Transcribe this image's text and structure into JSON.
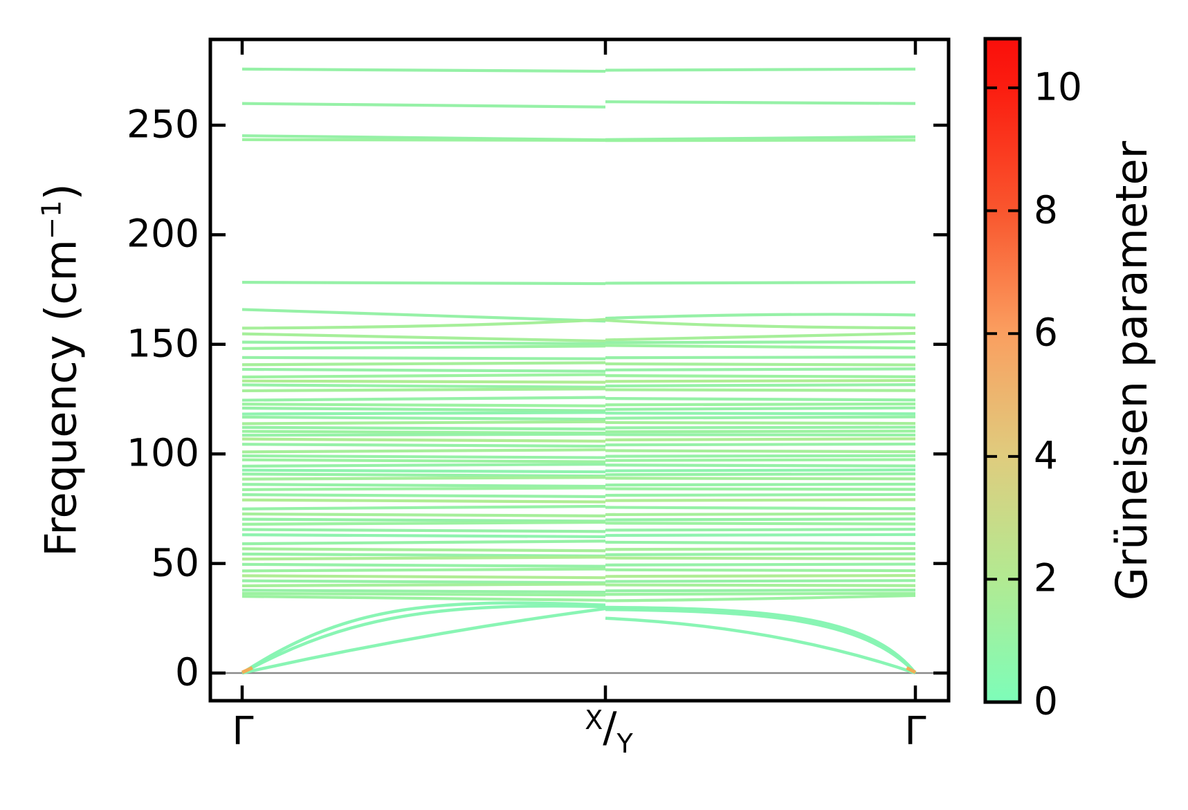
{
  "chart_data": {
    "type": "line",
    "title": "",
    "description": "Phonon band structure colored by Grüneisen parameter along Γ–X/Y–Γ",
    "ylabel": {
      "text": "Frequency (cm",
      "sup": "−1",
      "close": ")"
    },
    "xticks": {
      "left": "Γ",
      "mid": {
        "sup": "X",
        "slash": "/",
        "sub": "Y"
      },
      "right": "Γ"
    },
    "yticks": [
      0,
      50,
      100,
      150,
      200,
      250
    ],
    "ylim": [
      -12.5,
      289
    ],
    "x_path": [
      "Γ",
      "X|Y",
      "Γ"
    ],
    "zero_line_color": "#8a8a8a",
    "colorbar": {
      "label": "Grüneisen parameter",
      "ticks": [
        0,
        2,
        4,
        6,
        8,
        10
      ],
      "vmin": 0,
      "vmax": 10.8,
      "stops": [
        {
          "v": 10.8,
          "color": "#fa0f0b"
        },
        {
          "v": 10.0,
          "color": "#fb1d10"
        },
        {
          "v": 8.0,
          "color": "#f9562e"
        },
        {
          "v": 6.0,
          "color": "#fa9f60"
        },
        {
          "v": 4.0,
          "color": "#dfcc7e"
        },
        {
          "v": 2.0,
          "color": "#b2ea92"
        },
        {
          "v": 0.0,
          "color": "#7dfdb9"
        }
      ]
    },
    "palette": [
      "#98f19d",
      "#92f0a3",
      "#a2ee96",
      "#adec90",
      "#8af3ac",
      "#84f5b1",
      "#f5a952"
    ],
    "bands": [
      {
        "l": [
          275.6,
          274.6
        ],
        "r": [
          275.1,
          275.6
        ],
        "c": 1
      },
      {
        "l": [
          259.9,
          258.3
        ],
        "r": [
          260.7,
          259.9
        ],
        "c": 1
      },
      {
        "l": [
          245.2,
          243.3
        ],
        "r": [
          243.4,
          244.7
        ],
        "c": 1
      },
      {
        "l": [
          243.4,
          243.1
        ],
        "r": [
          243.0,
          243.2
        ],
        "c": 0
      },
      {
        "l": [
          178.3,
          177.7
        ],
        "r": [
          177.9,
          178.3
        ],
        "c": 1
      },
      {
        "l": [
          165.9,
          160.6
        ],
        "ql": [
          0.5,
          163.0
        ],
        "r": [
          161.9,
          163.4
        ],
        "qr": [
          0.55,
          164.4
        ],
        "c": 1
      },
      {
        "l": [
          157.4,
          161.4
        ],
        "ql": [
          0.65,
          157.9
        ],
        "r": [
          161.0,
          157.5
        ],
        "qr": [
          0.35,
          157.8
        ],
        "c": 2
      },
      {
        "l": [
          35.0,
          33.2
        ],
        "ql": [
          0.6,
          33.6
        ],
        "r": [
          33.0,
          35.4
        ],
        "qr": [
          0.4,
          33.4
        ],
        "c": 0
      },
      {
        "l": [
          0,
          31.0
        ],
        "cl": [
          [
            0.28,
            30.0
          ],
          [
            0.5,
            34.5
          ]
        ],
        "r": [
          30.0,
          0
        ],
        "cr": [
          [
            0.5,
            29.5
          ],
          [
            0.85,
            27.0
          ]
        ],
        "c": 5,
        "w": 4.5
      },
      {
        "l": [
          0,
          30.3
        ],
        "cl": [
          [
            0.3,
            27.0
          ],
          [
            0.55,
            32.0
          ]
        ],
        "r": [
          29.0,
          0
        ],
        "cr": [
          [
            0.5,
            28.2
          ],
          [
            0.83,
            25.5
          ]
        ],
        "c": 5,
        "w": 4.5
      },
      {
        "l": [
          0,
          29.4
        ],
        "ql": [
          0.5,
          18.5
        ],
        "r": [
          25.0,
          0
        ],
        "qr": [
          0.55,
          21.5
        ],
        "c": 5,
        "w": 4.5
      },
      {
        "l": [
          0.3,
          2.4
        ],
        "sl": [
          0,
          0.028
        ],
        "c": 6,
        "w": 5
      },
      {
        "r": [
          2.4,
          0.3
        ],
        "sr": [
          0.972,
          1
        ],
        "c": 6,
        "w": 5
      }
    ],
    "dense_bands": [
      [
        154.8,
        151.5,
        152.0,
        155.0,
        2
      ],
      [
        151.0,
        150.3,
        150.8,
        151.2,
        1
      ],
      [
        148.1,
        149.2,
        149.5,
        148.3,
        0
      ],
      [
        144.0,
        143.4,
        143.9,
        144.2,
        1
      ],
      [
        140.7,
        141.6,
        141.1,
        140.6,
        2
      ],
      [
        138.6,
        137.7,
        138.3,
        138.8,
        1
      ],
      [
        135.1,
        136.2,
        135.7,
        135.2,
        0
      ],
      [
        133.3,
        132.7,
        133.1,
        133.5,
        3
      ],
      [
        131.5,
        130.4,
        131.0,
        131.6,
        1
      ],
      [
        128.8,
        129.7,
        129.3,
        128.9,
        2
      ],
      [
        124.5,
        125.8,
        125.3,
        124.6,
        1
      ],
      [
        122.7,
        121.9,
        122.4,
        122.8,
        0
      ],
      [
        120.9,
        119.7,
        120.3,
        121.0,
        1
      ],
      [
        118.2,
        118.9,
        118.6,
        118.3,
        4
      ],
      [
        116.8,
        115.8,
        116.3,
        116.9,
        1
      ],
      [
        113.8,
        114.7,
        114.3,
        113.9,
        2
      ],
      [
        112.1,
        111.3,
        111.9,
        112.2,
        1
      ],
      [
        110.3,
        109.5,
        110.1,
        110.4,
        0
      ],
      [
        108.5,
        109.0,
        108.8,
        108.6,
        1
      ],
      [
        106.8,
        105.8,
        106.4,
        106.9,
        3
      ],
      [
        104.4,
        103.5,
        104.1,
        104.5,
        1
      ],
      [
        100.9,
        101.9,
        101.5,
        101.0,
        2
      ],
      [
        99.1,
        98.3,
        98.9,
        99.2,
        1
      ],
      [
        97.3,
        96.4,
        97.0,
        97.4,
        0
      ],
      [
        94.4,
        95.3,
        94.9,
        94.5,
        1
      ],
      [
        92.6,
        91.8,
        92.3,
        92.7,
        4
      ],
      [
        90.8,
        89.9,
        90.5,
        90.9,
        1
      ],
      [
        88.5,
        89.3,
        88.9,
        88.6,
        2
      ],
      [
        86.1,
        85.2,
        85.8,
        86.2,
        1
      ],
      [
        83.7,
        84.5,
        84.1,
        83.8,
        0
      ],
      [
        81.4,
        80.5,
        81.1,
        81.5,
        1
      ],
      [
        79.0,
        78.1,
        78.7,
        79.1,
        3
      ],
      [
        74.9,
        76.1,
        75.6,
        75.0,
        1
      ],
      [
        72.6,
        71.7,
        72.3,
        72.7,
        2
      ],
      [
        70.2,
        69.3,
        69.9,
        70.3,
        1
      ],
      [
        67.9,
        68.8,
        68.4,
        68.0,
        0
      ],
      [
        65.5,
        64.6,
        65.2,
        65.6,
        1
      ],
      [
        63.1,
        62.2,
        62.8,
        63.2,
        4
      ],
      [
        59.0,
        60.2,
        59.7,
        59.1,
        1
      ],
      [
        56.7,
        55.8,
        56.4,
        56.8,
        2
      ],
      [
        54.3,
        53.4,
        54.0,
        54.4,
        1
      ],
      [
        52.0,
        52.9,
        52.5,
        52.1,
        3
      ],
      [
        49.6,
        48.7,
        49.3,
        49.7,
        1
      ],
      [
        46.6,
        47.5,
        47.1,
        46.7,
        0
      ],
      [
        44.4,
        43.5,
        44.1,
        44.5,
        3
      ],
      [
        42.1,
        41.2,
        41.8,
        42.2,
        1
      ],
      [
        39.8,
        40.6,
        40.2,
        39.9,
        2
      ],
      [
        37.8,
        36.9,
        37.5,
        37.9,
        1
      ],
      [
        36.3,
        35.6,
        35.9,
        36.4,
        0
      ]
    ]
  }
}
